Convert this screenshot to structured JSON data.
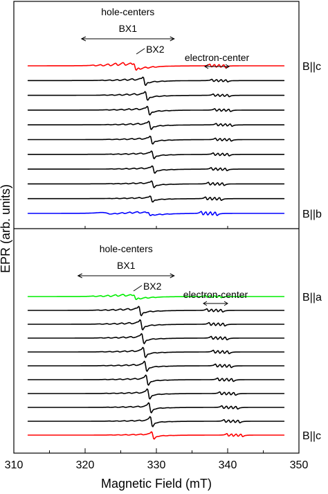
{
  "chart_data": {
    "type": "line",
    "xlabel": "Magnetic Field (mT)",
    "ylabel": "EPR (arb. units)",
    "xlim": [
      310,
      350
    ],
    "xticks": [
      310,
      320,
      330,
      340,
      350
    ],
    "grid": false,
    "panels": [
      {
        "name": "top",
        "annotations": {
          "group_label": "hole-centers",
          "bx1": "BX1",
          "bx1_range": [
            319.5,
            332.5
          ],
          "bx2": "BX2",
          "bx2_at": 327.0,
          "electron": "electron-center",
          "electron_range": [
            336.8,
            340.2
          ]
        },
        "series": [
          {
            "label": "B||c",
            "color": "#ff0000",
            "offset": 10,
            "hole_center": 325.5,
            "hole_amp": 1.0,
            "el_center": 338.6,
            "el_amp": 0.9,
            "bx2_amp": 1.0
          },
          {
            "label": "",
            "color": "#000000",
            "offset": 9,
            "hole_center": 326.8,
            "hole_amp": 0.55,
            "el_center": 338.9,
            "el_amp": 0.7,
            "bx2_amp": 1.25
          },
          {
            "label": "",
            "color": "#000000",
            "offset": 8,
            "hole_center": 327.1,
            "hole_amp": 0.5,
            "el_center": 339.1,
            "el_amp": 0.72,
            "bx2_amp": 1.3
          },
          {
            "label": "",
            "color": "#000000",
            "offset": 7,
            "hole_center": 327.4,
            "hole_amp": 0.48,
            "el_center": 339.3,
            "el_amp": 0.74,
            "bx2_amp": 1.3
          },
          {
            "label": "",
            "color": "#000000",
            "offset": 6,
            "hole_center": 327.6,
            "hole_amp": 0.45,
            "el_center": 339.5,
            "el_amp": 0.76,
            "bx2_amp": 1.25
          },
          {
            "label": "",
            "color": "#000000",
            "offset": 5,
            "hole_center": 327.8,
            "hole_amp": 0.42,
            "el_center": 339.4,
            "el_amp": 0.78,
            "bx2_amp": 1.2
          },
          {
            "label": "",
            "color": "#000000",
            "offset": 4,
            "hole_center": 328.0,
            "hole_amp": 0.4,
            "el_center": 339.1,
            "el_amp": 0.8,
            "bx2_amp": 1.15
          },
          {
            "label": "",
            "color": "#000000",
            "offset": 3,
            "hole_center": 328.1,
            "hole_amp": 0.38,
            "el_center": 338.8,
            "el_amp": 0.82,
            "bx2_amp": 1.1
          },
          {
            "label": "",
            "color": "#000000",
            "offset": 2,
            "hole_center": 328.0,
            "hole_amp": 0.36,
            "el_center": 338.4,
            "el_amp": 0.85,
            "bx2_amp": 1.0
          },
          {
            "label": "",
            "color": "#000000",
            "offset": 1,
            "hole_center": 327.8,
            "hole_amp": 0.34,
            "el_center": 338.0,
            "el_amp": 0.9,
            "bx2_amp": 0.9
          },
          {
            "label": "B||b",
            "color": "#0000ff",
            "offset": 0,
            "hole_center": 327.5,
            "hole_amp": 0.55,
            "el_center": 337.4,
            "el_amp": 1.1,
            "bx2_amp": 0.5
          }
        ]
      },
      {
        "name": "bottom",
        "annotations": {
          "group_label": "hole-centers",
          "bx1": "BX1",
          "bx1_range": [
            319.0,
            332.5
          ],
          "bx2": "BX2",
          "bx2_at": 326.6,
          "electron": "electron-center",
          "electron_range": [
            336.6,
            340.0
          ]
        },
        "series": [
          {
            "label": "B||a",
            "color": "#00ee00",
            "offset": 10,
            "hole_center": 325.5,
            "hole_amp": 0.7,
            "el_center": 338.0,
            "el_amp": 0.6,
            "bx2_amp": 0.7
          },
          {
            "label": "",
            "color": "#000000",
            "offset": 9,
            "hole_center": 326.2,
            "hole_amp": 0.55,
            "el_center": 338.2,
            "el_amp": 0.85,
            "bx2_amp": 1.4
          },
          {
            "label": "",
            "color": "#000000",
            "offset": 8,
            "hole_center": 326.4,
            "hole_amp": 0.5,
            "el_center": 338.5,
            "el_amp": 0.9,
            "bx2_amp": 1.5
          },
          {
            "label": "",
            "color": "#000000",
            "offset": 7,
            "hole_center": 326.6,
            "hole_amp": 0.46,
            "el_center": 338.8,
            "el_amp": 0.92,
            "bx2_amp": 1.5
          },
          {
            "label": "",
            "color": "#000000",
            "offset": 6,
            "hole_center": 326.8,
            "hole_amp": 0.42,
            "el_center": 339.1,
            "el_amp": 0.92,
            "bx2_amp": 1.5
          },
          {
            "label": "",
            "color": "#000000",
            "offset": 5,
            "hole_center": 327.0,
            "hole_amp": 0.4,
            "el_center": 339.4,
            "el_amp": 0.92,
            "bx2_amp": 1.5
          },
          {
            "label": "",
            "color": "#000000",
            "offset": 4,
            "hole_center": 327.2,
            "hole_amp": 0.38,
            "el_center": 339.7,
            "el_amp": 0.9,
            "bx2_amp": 1.5
          },
          {
            "label": "",
            "color": "#000000",
            "offset": 3,
            "hole_center": 327.4,
            "hole_amp": 0.36,
            "el_center": 340.0,
            "el_amp": 0.88,
            "bx2_amp": 1.5
          },
          {
            "label": "",
            "color": "#000000",
            "offset": 2,
            "hole_center": 327.6,
            "hole_amp": 0.34,
            "el_center": 340.3,
            "el_amp": 0.86,
            "bx2_amp": 1.5
          },
          {
            "label": "",
            "color": "#000000",
            "offset": 1,
            "hole_center": 327.8,
            "hole_amp": 0.32,
            "el_center": 340.6,
            "el_amp": 0.84,
            "bx2_amp": 1.5
          },
          {
            "label": "B||c",
            "color": "#ff0000",
            "offset": 0,
            "hole_center": 328.0,
            "hole_amp": 0.3,
            "el_center": 341.0,
            "el_amp": 0.8,
            "bx2_amp": 1.1
          }
        ]
      }
    ]
  }
}
